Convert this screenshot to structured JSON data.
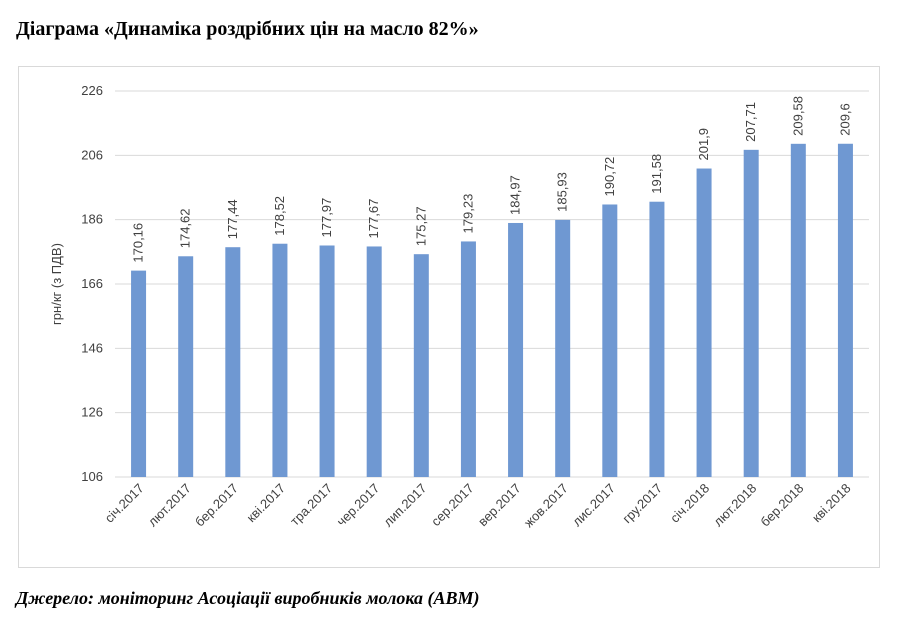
{
  "title": "Діаграма «Динаміка роздрібних цін на масло 82%»",
  "source": "Джерело: моніторинг Асоціації виробників молока (АВМ)",
  "colors": {
    "bar": "#6f98d2",
    "grid": "#d9d9d9",
    "text": "#404040"
  },
  "chart_data": {
    "type": "bar",
    "title": "",
    "xlabel": "",
    "ylabel": "грн/кг (з ПДВ)",
    "ylim": [
      106,
      226
    ],
    "yticks": [
      106,
      126,
      146,
      166,
      186,
      206,
      226
    ],
    "grid": true,
    "legend": "none",
    "categories": [
      "січ.2017",
      "лют.2017",
      "бер.2017",
      "кві.2017",
      "тра.2017",
      "чер.2017",
      "лип.2017",
      "сер.2017",
      "вер.2017",
      "жов.2017",
      "лис.2017",
      "гру.2017",
      "січ.2018",
      "лют.2018",
      "бер.2018",
      "кві.2018"
    ],
    "values": [
      170.16,
      174.62,
      177.44,
      178.52,
      177.97,
      177.67,
      175.27,
      179.23,
      184.97,
      185.93,
      190.72,
      191.58,
      201.9,
      207.71,
      209.58,
      209.6
    ],
    "value_labels": [
      "170,16",
      "174,62",
      "177,44",
      "178,52",
      "177,97",
      "177,67",
      "175,27",
      "179,23",
      "184,97",
      "185,93",
      "190,72",
      "191,58",
      "201,9",
      "207,71",
      "209,58",
      "209,6"
    ]
  }
}
